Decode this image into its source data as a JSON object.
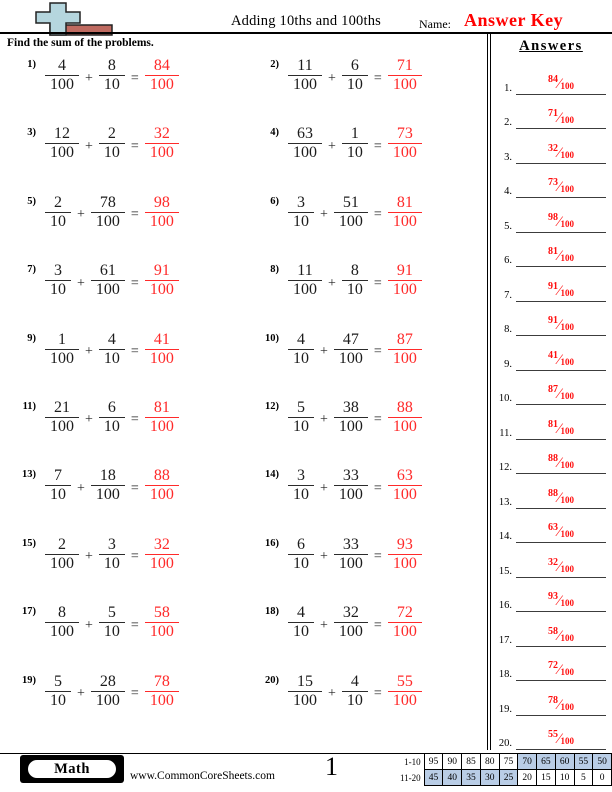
{
  "header": {
    "title": "Adding 10ths and 100ths",
    "name_label": "Name:",
    "answer_key_label": "Answer Key",
    "icon": "plus-sign-with-red-bar-icon"
  },
  "instruction": "Find the sum of the problems.",
  "operators": {
    "plus": "+",
    "equals": "="
  },
  "problems": [
    {
      "n": "1)",
      "a": [
        "4",
        "100"
      ],
      "b": [
        "8",
        "10"
      ],
      "ans": [
        "84",
        "100"
      ]
    },
    {
      "n": "2)",
      "a": [
        "11",
        "100"
      ],
      "b": [
        "6",
        "10"
      ],
      "ans": [
        "71",
        "100"
      ]
    },
    {
      "n": "3)",
      "a": [
        "12",
        "100"
      ],
      "b": [
        "2",
        "10"
      ],
      "ans": [
        "32",
        "100"
      ]
    },
    {
      "n": "4)",
      "a": [
        "63",
        "100"
      ],
      "b": [
        "1",
        "10"
      ],
      "ans": [
        "73",
        "100"
      ]
    },
    {
      "n": "5)",
      "a": [
        "2",
        "10"
      ],
      "b": [
        "78",
        "100"
      ],
      "ans": [
        "98",
        "100"
      ]
    },
    {
      "n": "6)",
      "a": [
        "3",
        "10"
      ],
      "b": [
        "51",
        "100"
      ],
      "ans": [
        "81",
        "100"
      ]
    },
    {
      "n": "7)",
      "a": [
        "3",
        "10"
      ],
      "b": [
        "61",
        "100"
      ],
      "ans": [
        "91",
        "100"
      ]
    },
    {
      "n": "8)",
      "a": [
        "11",
        "100"
      ],
      "b": [
        "8",
        "10"
      ],
      "ans": [
        "91",
        "100"
      ]
    },
    {
      "n": "9)",
      "a": [
        "1",
        "100"
      ],
      "b": [
        "4",
        "10"
      ],
      "ans": [
        "41",
        "100"
      ]
    },
    {
      "n": "10)",
      "a": [
        "4",
        "10"
      ],
      "b": [
        "47",
        "100"
      ],
      "ans": [
        "87",
        "100"
      ]
    },
    {
      "n": "11)",
      "a": [
        "21",
        "100"
      ],
      "b": [
        "6",
        "10"
      ],
      "ans": [
        "81",
        "100"
      ]
    },
    {
      "n": "12)",
      "a": [
        "5",
        "10"
      ],
      "b": [
        "38",
        "100"
      ],
      "ans": [
        "88",
        "100"
      ]
    },
    {
      "n": "13)",
      "a": [
        "7",
        "10"
      ],
      "b": [
        "18",
        "100"
      ],
      "ans": [
        "88",
        "100"
      ]
    },
    {
      "n": "14)",
      "a": [
        "3",
        "10"
      ],
      "b": [
        "33",
        "100"
      ],
      "ans": [
        "63",
        "100"
      ]
    },
    {
      "n": "15)",
      "a": [
        "2",
        "100"
      ],
      "b": [
        "3",
        "10"
      ],
      "ans": [
        "32",
        "100"
      ]
    },
    {
      "n": "16)",
      "a": [
        "6",
        "10"
      ],
      "b": [
        "33",
        "100"
      ],
      "ans": [
        "93",
        "100"
      ]
    },
    {
      "n": "17)",
      "a": [
        "8",
        "100"
      ],
      "b": [
        "5",
        "10"
      ],
      "ans": [
        "58",
        "100"
      ]
    },
    {
      "n": "18)",
      "a": [
        "4",
        "10"
      ],
      "b": [
        "32",
        "100"
      ],
      "ans": [
        "72",
        "100"
      ]
    },
    {
      "n": "19)",
      "a": [
        "5",
        "10"
      ],
      "b": [
        "28",
        "100"
      ],
      "ans": [
        "78",
        "100"
      ]
    },
    {
      "n": "20)",
      "a": [
        "15",
        "100"
      ],
      "b": [
        "4",
        "10"
      ],
      "ans": [
        "55",
        "100"
      ]
    }
  ],
  "answers_sidebar": {
    "title": "Answers",
    "items": [
      {
        "label": "1.",
        "num": "84",
        "den": "100"
      },
      {
        "label": "2.",
        "num": "71",
        "den": "100"
      },
      {
        "label": "3.",
        "num": "32",
        "den": "100"
      },
      {
        "label": "4.",
        "num": "73",
        "den": "100"
      },
      {
        "label": "5.",
        "num": "98",
        "den": "100"
      },
      {
        "label": "6.",
        "num": "81",
        "den": "100"
      },
      {
        "label": "7.",
        "num": "91",
        "den": "100"
      },
      {
        "label": "8.",
        "num": "91",
        "den": "100"
      },
      {
        "label": "9.",
        "num": "41",
        "den": "100"
      },
      {
        "label": "10.",
        "num": "87",
        "den": "100"
      },
      {
        "label": "11.",
        "num": "81",
        "den": "100"
      },
      {
        "label": "12.",
        "num": "88",
        "den": "100"
      },
      {
        "label": "13.",
        "num": "88",
        "den": "100"
      },
      {
        "label": "14.",
        "num": "63",
        "den": "100"
      },
      {
        "label": "15.",
        "num": "32",
        "den": "100"
      },
      {
        "label": "16.",
        "num": "93",
        "den": "100"
      },
      {
        "label": "17.",
        "num": "58",
        "den": "100"
      },
      {
        "label": "18.",
        "num": "72",
        "den": "100"
      },
      {
        "label": "19.",
        "num": "78",
        "den": "100"
      },
      {
        "label": "20.",
        "num": "55",
        "den": "100"
      }
    ]
  },
  "footer": {
    "subject": "Math",
    "website": "www.CommonCoreSheets.com",
    "page_number": "1",
    "score_table": {
      "rows": [
        {
          "label": "1-10",
          "cells": [
            "95",
            "90",
            "85",
            "80",
            "75",
            "70",
            "65",
            "60",
            "55",
            "50"
          ],
          "highlight": [
            false,
            false,
            false,
            false,
            false,
            true,
            true,
            true,
            true,
            true
          ]
        },
        {
          "label": "11-20",
          "cells": [
            "45",
            "40",
            "35",
            "30",
            "25",
            "20",
            "15",
            "10",
            "5",
            "0"
          ],
          "highlight": [
            true,
            true,
            true,
            true,
            true,
            false,
            false,
            false,
            false,
            false
          ]
        }
      ]
    }
  },
  "colors": {
    "answer_red": "#ff2a2a",
    "key_red": "#ff0000",
    "cell_blue": "#b9cde6",
    "icon_blue": "#b5d6de",
    "icon_red": "#bf6a60"
  }
}
